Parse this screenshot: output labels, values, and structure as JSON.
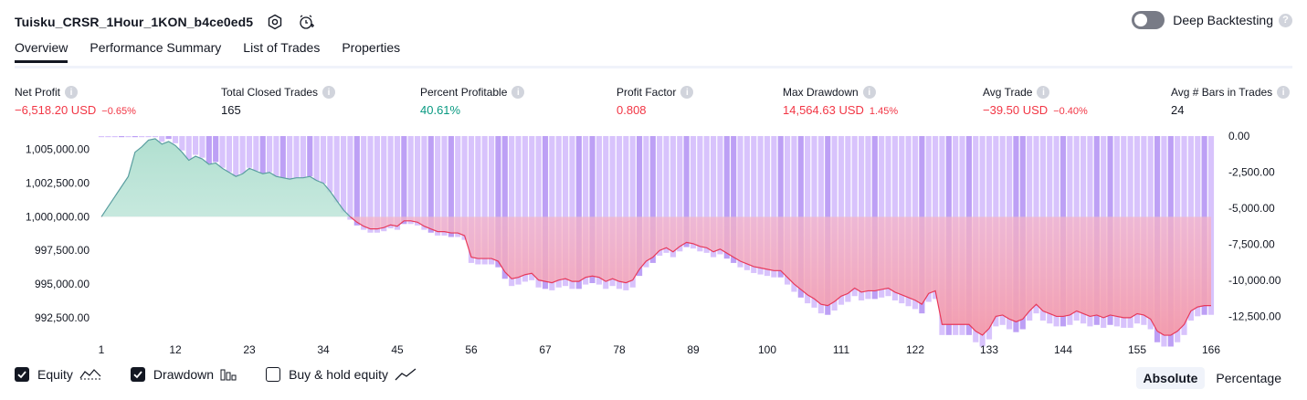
{
  "header": {
    "title": "Tuisku_CRSR_1Hour_1KON_b4ce0ed5",
    "icons": [
      "settings-icon",
      "alarm-add-icon"
    ],
    "deep_backtesting_label": "Deep Backtesting",
    "deep_backtesting_on": false
  },
  "tabs": [
    {
      "label": "Overview",
      "active": true
    },
    {
      "label": "Performance Summary",
      "active": false
    },
    {
      "label": "List of Trades",
      "active": false
    },
    {
      "label": "Properties",
      "active": false
    }
  ],
  "metrics": [
    {
      "label": "Net Profit",
      "value": "−6,518.20 USD",
      "sub": "−0.65%",
      "color": "#f23645"
    },
    {
      "label": "Total Closed Trades",
      "value": "165",
      "sub": "",
      "color": "#131722"
    },
    {
      "label": "Percent Profitable",
      "value": "40.61%",
      "sub": "",
      "color": "#089981"
    },
    {
      "label": "Profit Factor",
      "value": "0.808",
      "sub": "",
      "color": "#f23645"
    },
    {
      "label": "Max Drawdown",
      "value": "14,564.63 USD",
      "sub": "1.45%",
      "color": "#f23645"
    },
    {
      "label": "Avg Trade",
      "value": "−39.50 USD",
      "sub": "−0.40%",
      "color": "#f23645"
    },
    {
      "label": "Avg # Bars in Trades",
      "value": "24",
      "sub": "",
      "color": "#131722"
    }
  ],
  "chart_data": {
    "type": "area",
    "x_ticks": [
      "1",
      "12",
      "23",
      "34",
      "45",
      "56",
      "67",
      "78",
      "89",
      "100",
      "111",
      "122",
      "133",
      "144",
      "155",
      "166"
    ],
    "left_axis": {
      "ticks": [
        "1,005,000.00",
        "1,002,500.00",
        "1,000,000.00",
        "997,500.00",
        "995,000.00",
        "992,500.00"
      ],
      "range": [
        991000,
        1006000
      ]
    },
    "right_axis": {
      "ticks": [
        "0.00",
        "-2,500.00",
        "-5,000.00",
        "-7,500.00",
        "-10,000.00",
        "-12,500.00"
      ],
      "range": [
        -14000,
        0
      ]
    },
    "baseline": 1000000,
    "equity_keypoints": [
      [
        1,
        1000000
      ],
      [
        3,
        1001500
      ],
      [
        5,
        1003000
      ],
      [
        6,
        1004800
      ],
      [
        7,
        1005200
      ],
      [
        8,
        1005700
      ],
      [
        9,
        1005800
      ],
      [
        10,
        1005400
      ],
      [
        11,
        1005600
      ],
      [
        12,
        1005300
      ],
      [
        13,
        1004800
      ],
      [
        14,
        1004200
      ],
      [
        15,
        1004500
      ],
      [
        16,
        1004300
      ],
      [
        17,
        1003900
      ],
      [
        18,
        1004000
      ],
      [
        19,
        1003600
      ],
      [
        20,
        1003300
      ],
      [
        21,
        1003000
      ],
      [
        22,
        1003200
      ],
      [
        23,
        1003600
      ],
      [
        24,
        1003400
      ],
      [
        25,
        1003200
      ],
      [
        26,
        1003300
      ],
      [
        27,
        1003000
      ],
      [
        28,
        1002900
      ],
      [
        29,
        1002800
      ],
      [
        30,
        1002900
      ],
      [
        31,
        1002900
      ],
      [
        32,
        1003000
      ],
      [
        33,
        1002700
      ],
      [
        34,
        1002500
      ],
      [
        35,
        1001900
      ],
      [
        36,
        1001200
      ],
      [
        37,
        1000500
      ],
      [
        38,
        1000000
      ],
      [
        39,
        999600
      ],
      [
        40,
        999300
      ],
      [
        41,
        999100
      ],
      [
        42,
        999100
      ],
      [
        43,
        999200
      ],
      [
        44,
        999400
      ],
      [
        45,
        999300
      ],
      [
        46,
        999700
      ],
      [
        47,
        999700
      ],
      [
        48,
        999600
      ],
      [
        49,
        999300
      ],
      [
        50,
        999100
      ],
      [
        51,
        998900
      ],
      [
        52,
        998900
      ],
      [
        53,
        998800
      ],
      [
        54,
        998800
      ],
      [
        55,
        998600
      ],
      [
        56,
        997000
      ],
      [
        57,
        996900
      ],
      [
        58,
        996900
      ],
      [
        59,
        996900
      ],
      [
        60,
        996700
      ],
      [
        61,
        995900
      ],
      [
        62,
        995400
      ],
      [
        63,
        995500
      ],
      [
        64,
        995700
      ],
      [
        65,
        995800
      ],
      [
        66,
        995300
      ],
      [
        67,
        995200
      ],
      [
        68,
        995100
      ],
      [
        69,
        995300
      ],
      [
        70,
        995400
      ],
      [
        71,
        995200
      ],
      [
        72,
        995200
      ],
      [
        73,
        995500
      ],
      [
        74,
        995600
      ],
      [
        75,
        995500
      ],
      [
        76,
        995200
      ],
      [
        77,
        995400
      ],
      [
        78,
        995200
      ],
      [
        79,
        995100
      ],
      [
        80,
        995300
      ],
      [
        81,
        996100
      ],
      [
        82,
        996700
      ],
      [
        83,
        997000
      ],
      [
        84,
        997500
      ],
      [
        85,
        997700
      ],
      [
        86,
        997400
      ],
      [
        87,
        997800
      ],
      [
        88,
        998100
      ],
      [
        89,
        998000
      ],
      [
        90,
        997800
      ],
      [
        91,
        997700
      ],
      [
        92,
        997400
      ],
      [
        93,
        997600
      ],
      [
        94,
        997300
      ],
      [
        95,
        997000
      ],
      [
        96,
        996700
      ],
      [
        97,
        996500
      ],
      [
        98,
        996300
      ],
      [
        99,
        996200
      ],
      [
        100,
        996100
      ],
      [
        101,
        996000
      ],
      [
        102,
        996000
      ],
      [
        103,
        995500
      ],
      [
        104,
        995000
      ],
      [
        105,
        994600
      ],
      [
        106,
        994200
      ],
      [
        107,
        993900
      ],
      [
        108,
        993500
      ],
      [
        109,
        993400
      ],
      [
        110,
        993700
      ],
      [
        111,
        994100
      ],
      [
        112,
        994300
      ],
      [
        113,
        994700
      ],
      [
        114,
        994400
      ],
      [
        115,
        994500
      ],
      [
        116,
        994500
      ],
      [
        117,
        994600
      ],
      [
        118,
        994700
      ],
      [
        119,
        994400
      ],
      [
        120,
        994200
      ],
      [
        121,
        994000
      ],
      [
        122,
        993800
      ],
      [
        123,
        993500
      ],
      [
        124,
        994300
      ],
      [
        125,
        994500
      ],
      [
        126,
        992000
      ],
      [
        127,
        992000
      ],
      [
        128,
        992000
      ],
      [
        129,
        992000
      ],
      [
        130,
        992000
      ],
      [
        131,
        991500
      ],
      [
        132,
        991200
      ],
      [
        133,
        991700
      ],
      [
        134,
        992600
      ],
      [
        135,
        992700
      ],
      [
        136,
        992400
      ],
      [
        137,
        992200
      ],
      [
        138,
        992400
      ],
      [
        139,
        993000
      ],
      [
        140,
        993500
      ],
      [
        141,
        993000
      ],
      [
        142,
        992800
      ],
      [
        143,
        992600
      ],
      [
        144,
        992600
      ],
      [
        145,
        992700
      ],
      [
        146,
        993000
      ],
      [
        147,
        992800
      ],
      [
        148,
        992600
      ],
      [
        149,
        992700
      ],
      [
        150,
        992500
      ],
      [
        151,
        992700
      ],
      [
        152,
        992600
      ],
      [
        153,
        992500
      ],
      [
        154,
        992500
      ],
      [
        155,
        992800
      ],
      [
        156,
        992700
      ],
      [
        157,
        992400
      ],
      [
        158,
        991500
      ],
      [
        159,
        991200
      ],
      [
        160,
        991200
      ],
      [
        161,
        991500
      ],
      [
        162,
        992000
      ],
      [
        163,
        993000
      ],
      [
        164,
        993300
      ],
      [
        165,
        993400
      ],
      [
        166,
        993400
      ]
    ],
    "legend": [
      {
        "label": "Equity",
        "checked": true,
        "icon": "equity-line-icon"
      },
      {
        "label": "Drawdown",
        "checked": true,
        "icon": "drawdown-bars-icon"
      },
      {
        "label": "Buy & hold equity",
        "checked": false,
        "icon": "buy-hold-line-icon"
      }
    ],
    "modes": [
      {
        "label": "Absolute",
        "active": true
      },
      {
        "label": "Percentage",
        "active": false
      }
    ],
    "colors": {
      "equity_line_positive": "#5a9ea0",
      "equity_fill_positive": "#d6efe8",
      "equity_line_negative": "#e8395a",
      "equity_fill_negative": "#f49aaa",
      "drawdown_bar": "#d8c3fc",
      "drawdown_bar_dark": "#bda0f5"
    }
  }
}
